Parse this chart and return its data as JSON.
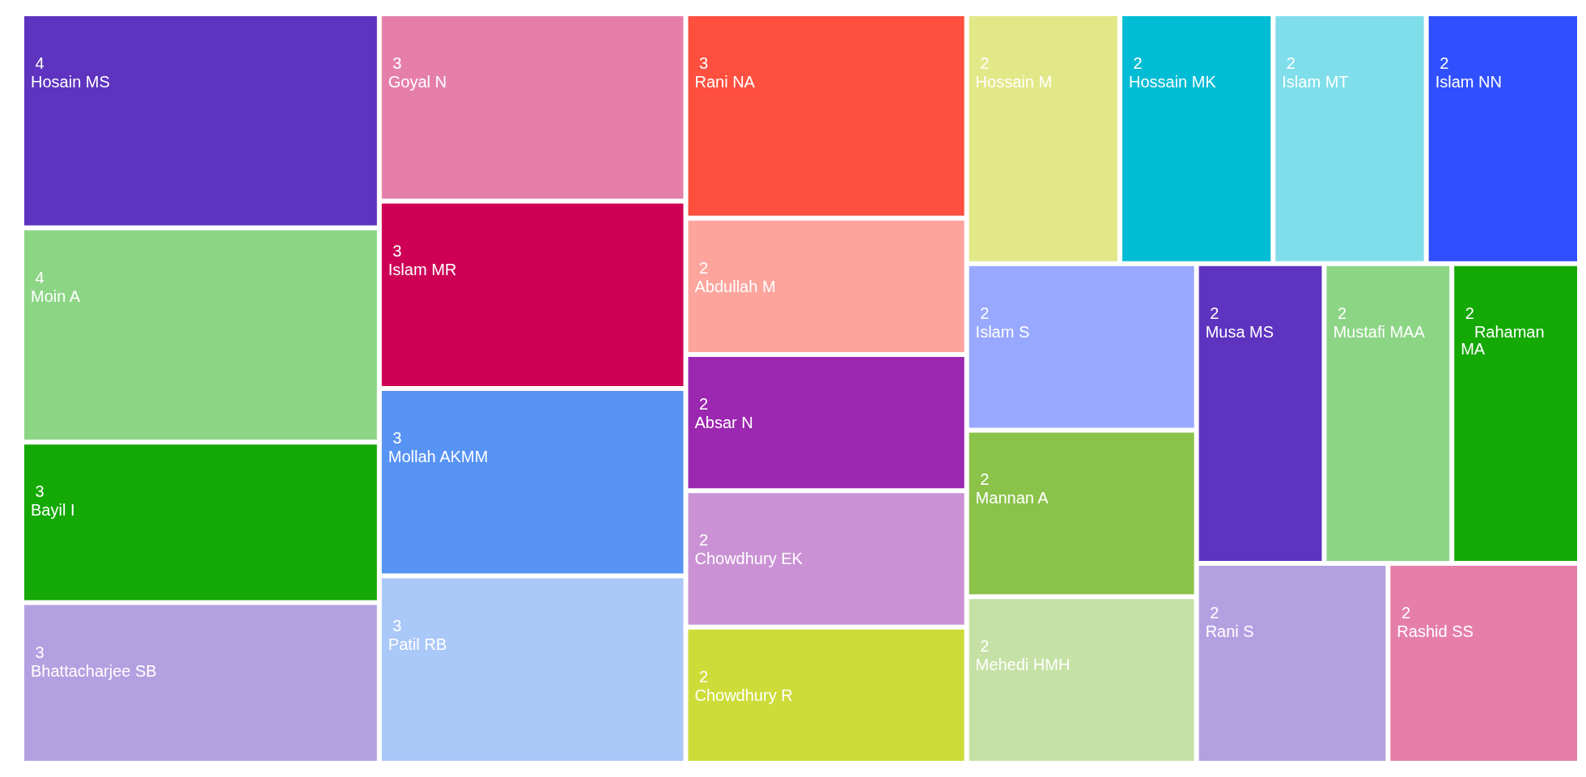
{
  "chart_data": {
    "type": "other",
    "categories": [
      "Hosain MS",
      "Moin A",
      "Bayil I",
      "Bhattacharjee SB",
      "Goyal N",
      "Islam MR",
      "Mollah AKMM",
      "Patil RB",
      "Rani NA",
      "Abdullah M",
      "Absar N",
      "Chowdhury EK",
      "Chowdhury R",
      "Hossain M",
      "Hossain MK",
      "Islam MT",
      "Islam NN",
      "Islam S",
      "Mannan A",
      "Mehedi HMH",
      "Musa MS",
      "Mustafi MAA",
      "   Rahaman MA",
      "Rani S",
      "Rashid SS"
    ],
    "values": [
      4,
      4,
      3,
      3,
      3,
      3,
      3,
      3,
      3,
      2,
      2,
      2,
      2,
      2,
      2,
      2,
      2,
      2,
      2,
      2,
      2,
      2,
      2,
      2,
      2
    ],
    "colors": [
      "#5d33bf",
      "#8cd585",
      "#14a905",
      "#b3a0e0",
      "#e57faa",
      "#cd0055",
      "#5793f3",
      "#aac8f8",
      "#fe4f3f",
      "#fda59d",
      "#9c27b0",
      "#ca92d5",
      "#cddc39",
      "#e2e888",
      "#00bcd4",
      "#80deea",
      "#304ffe",
      "#97a8fe",
      "#8bc34a",
      "#c5e1a5",
      "#5d33bf",
      "#8cd585",
      "#14a905",
      "#b3a0e0",
      "#e57faa"
    ],
    "data_labels": true
  }
}
